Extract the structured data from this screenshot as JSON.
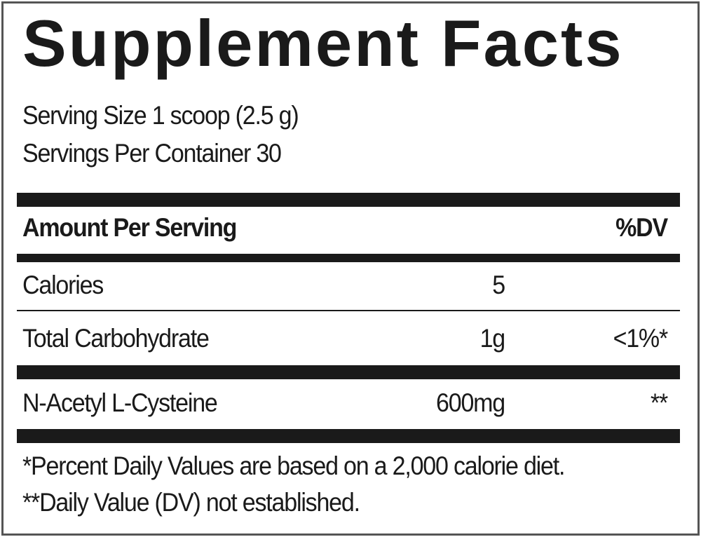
{
  "title": "Supplement Facts",
  "serving_size": "Serving Size 1 scoop (2.5 g)",
  "servings_per_container": "Servings Per Container 30",
  "header": {
    "amount": "Amount Per Serving",
    "dv": "%DV"
  },
  "rows": [
    {
      "name": "Calories",
      "amount": "5",
      "dv": ""
    },
    {
      "name": "Total Carbohydrate",
      "amount": "1g",
      "dv": "<1%*"
    },
    {
      "name": "N-Acetyl L-Cysteine",
      "amount": "600mg",
      "dv": "**"
    }
  ],
  "footnotes": [
    "*Percent Daily Values are based on a 2,000 calorie diet.",
    "**Daily Value (DV) not established."
  ]
}
